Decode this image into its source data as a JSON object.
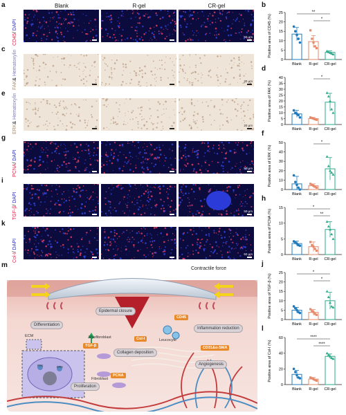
{
  "panel_letters": [
    "a",
    "b",
    "c",
    "d",
    "e",
    "f",
    "g",
    "h",
    "i",
    "j",
    "k",
    "l",
    "m"
  ],
  "columns": [
    "Blank",
    "R-gel",
    "CR-gel"
  ],
  "row_labels": {
    "cd45": {
      "marker": "CD45",
      "sep": "/ ",
      "stain": "DAPI"
    },
    "fak": {
      "marker": "FAK",
      "sep": "& ",
      "stain": "Hematoxylin"
    },
    "erk": {
      "marker": "ERK",
      "sep": "& ",
      "stain": "Hematoxylin"
    },
    "pcna": {
      "marker": "PCNA",
      "sep": "/ ",
      "stain": "DAPI"
    },
    "tgfb": {
      "marker": "TGF-β",
      "sep": "/ ",
      "stain": "DAPI"
    },
    "col1": {
      "marker": "Col-I",
      "sep": "/ ",
      "stain": "DAPI"
    }
  },
  "scale_bars": {
    "fluor": "50 μm",
    "ihc": "20 μm"
  },
  "schematic": {
    "contractile_force": "Contractile force",
    "epidermal_closure": "Epidermal closure",
    "differentiation": "Differentiation",
    "collagen_deposition": "Collagen deposition",
    "inflammation_reduction": "Inflammation reduction",
    "angiogenesis": "Angiogenesis",
    "proliferation": "Proliferation",
    "ecm": "ECM",
    "myofibroblast": "Myofibroblast",
    "fibroblast": "Fibroblast",
    "leucocyte": "Leucocyte",
    "fak": "FAK",
    "erk": "ERK",
    "tag_cd45": "CD45",
    "tag_col1": "Col-I",
    "tag_tgfb": "TGF-β",
    "tag_pcna": "PCNA",
    "tag_cd31": "CD31&α-SMA"
  },
  "chart_data": [
    {
      "panel": "b",
      "type": "bar",
      "ylabel": "Positive area of CD45 (%)",
      "categories": [
        "Blank",
        "R-gel",
        "CR-gel"
      ],
      "values": [
        13.5,
        9.5,
        3.8
      ],
      "errors": [
        3.5,
        3.2,
        0.8
      ],
      "ylim": [
        0,
        25
      ],
      "yticks": [
        0,
        5,
        10,
        15,
        20,
        25
      ],
      "points": [
        [
          17.5,
          15,
          13,
          11,
          9
        ],
        [
          15.5,
          11,
          9,
          7,
          6
        ],
        [
          4.5,
          4,
          3.6,
          3.2,
          2.8
        ]
      ],
      "colors": [
        "#1f7bbf",
        "#e58a6a",
        "#2aaa8a"
      ],
      "sig": [
        {
          "a": 0,
          "b": 2,
          "label": "**"
        },
        {
          "a": 1,
          "b": 2,
          "label": "*"
        }
      ]
    },
    {
      "panel": "d",
      "type": "bar",
      "ylabel": "Positive area of FAK (%)",
      "categories": [
        "Blank",
        "R-gel",
        "CR-gel"
      ],
      "values": [
        9,
        5,
        19
      ],
      "errors": [
        3,
        1,
        7.5
      ],
      "ylim": [
        0,
        40
      ],
      "yticks": [
        0,
        5,
        10,
        15,
        20,
        25,
        30,
        35,
        40
      ],
      "points": [
        [
          12,
          10,
          9,
          8,
          6
        ],
        [
          6,
          5.5,
          5,
          4.5,
          4
        ],
        [
          27,
          24,
          20,
          13,
          10
        ]
      ],
      "colors": [
        "#1f7bbf",
        "#e58a6a",
        "#2aaa8a"
      ],
      "sig": [
        {
          "a": 1,
          "b": 2,
          "label": "*"
        }
      ]
    },
    {
      "panel": "f",
      "type": "bar",
      "ylabel": "Positive area of ERK (%)",
      "categories": [
        "Blank",
        "R-gel",
        "CR-gel"
      ],
      "values": [
        6,
        4,
        22
      ],
      "errors": [
        8,
        2,
        12
      ],
      "ylim": [
        0,
        50
      ],
      "yticks": [
        0,
        10,
        20,
        30,
        40,
        50
      ],
      "points": [
        [
          15,
          8,
          5,
          2,
          0
        ],
        [
          6,
          5,
          4,
          3,
          2
        ],
        [
          35,
          25,
          20,
          18,
          16
        ]
      ],
      "colors": [
        "#1f7bbf",
        "#e58a6a",
        "#2aaa8a"
      ],
      "sig": [
        {
          "a": 1,
          "b": 2,
          "label": "*"
        }
      ]
    },
    {
      "panel": "h",
      "type": "bar",
      "ylabel": "Positive area of PCNA (%)",
      "categories": [
        "Blank",
        "R-gel",
        "CR-gel"
      ],
      "values": [
        3.5,
        2.5,
        8
      ],
      "errors": [
        0.8,
        1.5,
        2.5
      ],
      "ylim": [
        0,
        15
      ],
      "yticks": [
        0,
        5,
        10,
        15
      ],
      "points": [
        [
          4.2,
          3.8,
          3.5,
          3,
          2.8
        ],
        [
          4,
          3,
          2.5,
          1.8,
          1.2
        ],
        [
          10.5,
          9,
          8,
          6.5,
          5
        ]
      ],
      "colors": [
        "#1f7bbf",
        "#e58a6a",
        "#2aaa8a"
      ],
      "sig": [
        {
          "a": 0,
          "b": 2,
          "label": "*"
        },
        {
          "a": 1,
          "b": 2,
          "label": "**"
        }
      ]
    },
    {
      "panel": "j",
      "type": "bar",
      "ylabel": "Positive area of TGF-β (%)",
      "categories": [
        "Blank",
        "R-gel",
        "CR-gel"
      ],
      "values": [
        5,
        3.8,
        10
      ],
      "errors": [
        1.5,
        1.5,
        4.5
      ],
      "ylim": [
        0,
        25
      ],
      "yticks": [
        0,
        5,
        10,
        15,
        20,
        25
      ],
      "points": [
        [
          7,
          6,
          5,
          4,
          3.5
        ],
        [
          5.5,
          4.5,
          4,
          3,
          2.5
        ],
        [
          15,
          12,
          9,
          7,
          6.5
        ]
      ],
      "colors": [
        "#1f7bbf",
        "#e58a6a",
        "#2aaa8a"
      ],
      "sig": [
        {
          "a": 0,
          "b": 2,
          "label": "*"
        },
        {
          "a": 1,
          "b": 2,
          "label": "*"
        }
      ]
    },
    {
      "panel": "l",
      "type": "bar",
      "ylabel": "Positive area of Col-I (%)",
      "categories": [
        "Blank",
        "R-gel",
        "CR-gel"
      ],
      "values": [
        13,
        7,
        36
      ],
      "errors": [
        5,
        2,
        3
      ],
      "ylim": [
        0,
        60
      ],
      "yticks": [
        0,
        20,
        40,
        60
      ],
      "points": [
        [
          20,
          16,
          12,
          9,
          8
        ],
        [
          9,
          8,
          7,
          6,
          5
        ],
        [
          40,
          38,
          36,
          34,
          33
        ]
      ],
      "colors": [
        "#1f7bbf",
        "#e58a6a",
        "#2aaa8a"
      ],
      "sig": [
        {
          "a": 0,
          "b": 2,
          "label": "****"
        },
        {
          "a": 1,
          "b": 2,
          "label": "****"
        }
      ]
    }
  ]
}
